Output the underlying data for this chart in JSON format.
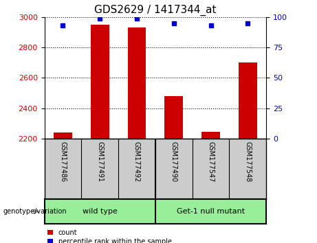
{
  "title": "GDS2629 / 1417344_at",
  "samples": [
    "GSM177486",
    "GSM177491",
    "GSM177492",
    "GSM177490",
    "GSM177547",
    "GSM177548"
  ],
  "counts": [
    2240,
    2950,
    2930,
    2480,
    2245,
    2700
  ],
  "percentile_ranks": [
    93,
    99,
    99,
    95,
    93,
    95
  ],
  "ylim_left": [
    2200,
    3000
  ],
  "ylim_right": [
    0,
    100
  ],
  "yticks_left": [
    2200,
    2400,
    2600,
    2800,
    3000
  ],
  "yticks_right": [
    0,
    25,
    50,
    75,
    100
  ],
  "bar_color": "#cc0000",
  "dot_color": "#0000cc",
  "bar_width": 0.5,
  "grid_color": "#000000",
  "bg_color": "#ffffff",
  "group1_label": "wild type",
  "group2_label": "Get-1 null mutant",
  "group1_indices": [
    0,
    1,
    2
  ],
  "group2_indices": [
    3,
    4,
    5
  ],
  "group_box_color": "#99ee99",
  "tick_label_area_color": "#cccccc",
  "legend_count_label": "count",
  "legend_percentile_label": "percentile rank within the sample",
  "genotype_label": "genotype/variation",
  "title_fontsize": 11,
  "tick_fontsize": 8,
  "label_fontsize": 8,
  "group_fontsize": 8,
  "sample_fontsize": 7
}
